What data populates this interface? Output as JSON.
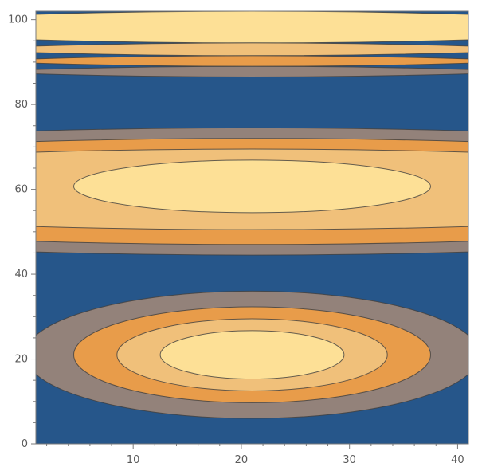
{
  "chart_data": {
    "type": "contour",
    "title": "",
    "xlabel": "",
    "ylabel": "",
    "xlim": [
      1,
      41
    ],
    "ylim": [
      0,
      102
    ],
    "x_ticks": [
      10,
      20,
      30,
      40
    ],
    "y_ticks": [
      0,
      20,
      40,
      60,
      80,
      100
    ],
    "grid": false,
    "legend": "none",
    "palette": {
      "low": "#26568a",
      "mid_low": "#93827a",
      "mid": "#e89c4a",
      "mid_high": "#f0c07a",
      "high": "#fde096"
    },
    "bands": [
      {
        "level": "low",
        "color": "#26568a",
        "y_range": [
          0,
          102
        ]
      },
      {
        "level": "high",
        "color": "#fde096",
        "y_range": [
          94.5,
          102
        ]
      },
      {
        "level": "mid_high",
        "color": "#f0c07a",
        "y_range": [
          91.5,
          94.5
        ]
      },
      {
        "level": "mid",
        "color": "#e89c4a",
        "y_range": [
          89,
          91.5
        ]
      },
      {
        "level": "mid_low",
        "color": "#93827a",
        "y_range": [
          86.5,
          89
        ]
      },
      {
        "level": "mid_low",
        "color": "#93827a",
        "y_range": [
          44.5,
          74.5
        ]
      },
      {
        "level": "mid",
        "color": "#e89c4a",
        "y_range": [
          47,
          72
        ]
      },
      {
        "level": "mid_high",
        "color": "#f0c07a",
        "y_range": [
          50.5,
          69.5
        ]
      }
    ],
    "islands": [
      {
        "level": "high",
        "color": "#fde096",
        "center": [
          21,
          60.7
        ],
        "x_half_width": 16.5,
        "y_half_height": 6.2
      },
      {
        "level": "mid_low",
        "color": "#93827a",
        "center": [
          21,
          21
        ],
        "x_half_width": 21,
        "y_half_height": 15
      },
      {
        "level": "mid",
        "color": "#e89c4a",
        "center": [
          21,
          21
        ],
        "x_half_width": 16.5,
        "y_half_height": 11.3
      },
      {
        "level": "mid_high",
        "color": "#f0c07a",
        "center": [
          21,
          21
        ],
        "x_half_width": 12.5,
        "y_half_height": 8.5
      },
      {
        "level": "high",
        "color": "#fde096",
        "center": [
          21,
          21
        ],
        "x_half_width": 8.5,
        "y_half_height": 5.7
      }
    ]
  }
}
